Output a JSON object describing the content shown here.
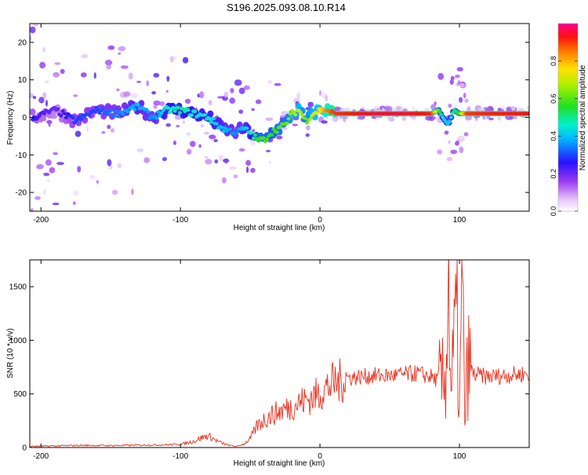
{
  "title": "S196.2025.093.08.10.R14",
  "chart_data": [
    {
      "type": "heatmap",
      "xlabel": "Height of straight line (km)",
      "ylabel": "Frequency (Hz)",
      "xlim": [
        -208,
        150
      ],
      "ylim": [
        -25,
        25
      ],
      "x_ticks": [
        -200,
        -100,
        0,
        100
      ],
      "y_ticks": [
        -20,
        -10,
        0,
        10,
        20
      ],
      "colorbar": {
        "label": "Normalized spectral amplitude",
        "ticks": [
          0.0,
          0.2,
          0.4,
          0.6,
          0.8
        ],
        "range": [
          0,
          1
        ]
      },
      "ridge": {
        "x": [
          -205,
          -190,
          -175,
          -160,
          -145,
          -130,
          -120,
          -110,
          -100,
          -90,
          -80,
          -70,
          -60,
          -55,
          -50,
          -45,
          -40,
          -35,
          -30,
          -25,
          -20,
          -15,
          -10,
          -5,
          0,
          5,
          10,
          20,
          40,
          60,
          80,
          85,
          88,
          92,
          96,
          100,
          105,
          120,
          150
        ],
        "freq": [
          0,
          2,
          -1,
          2,
          1,
          3,
          0,
          2,
          2,
          1,
          0,
          -3,
          -4,
          -3,
          -4,
          -6,
          -6,
          -4,
          -3,
          -2,
          1,
          2,
          -1,
          1,
          2,
          2,
          1,
          1,
          1,
          1,
          1,
          2,
          0,
          -2,
          2,
          1,
          1,
          1,
          1
        ],
        "amplitude": [
          0.25,
          0.2,
          0.3,
          0.3,
          0.35,
          0.4,
          0.35,
          0.45,
          0.5,
          0.45,
          0.45,
          0.4,
          0.35,
          0.4,
          0.45,
          0.55,
          0.6,
          0.55,
          0.6,
          0.6,
          0.65,
          0.7,
          0.6,
          0.7,
          0.75,
          0.85,
          0.9,
          0.92,
          0.95,
          0.95,
          0.92,
          0.6,
          0.45,
          0.4,
          0.5,
          0.6,
          0.9,
          0.92,
          0.93
        ]
      }
    },
    {
      "type": "line",
      "xlabel": "Height of straight line (km)",
      "ylabel": "SNR (10 * v/v)",
      "xlim": [
        -208,
        150
      ],
      "ylim": [
        0,
        1750
      ],
      "x_ticks": [
        -200,
        -100,
        0,
        100
      ],
      "y_ticks": [
        0,
        500,
        1000,
        1500
      ],
      "series": [
        {
          "color": "#e8301e",
          "x": [
            -208,
            -190,
            -170,
            -150,
            -130,
            -110,
            -100,
            -90,
            -85,
            -80,
            -75,
            -70,
            -65,
            -60,
            -55,
            -50,
            -45,
            -40,
            -35,
            -30,
            -25,
            -20,
            -15,
            -10,
            -5,
            0,
            5,
            10,
            15,
            20,
            30,
            40,
            50,
            60,
            70,
            80,
            85,
            90,
            92,
            94,
            96,
            98,
            100,
            102,
            104,
            106,
            110,
            120,
            130,
            140,
            150
          ],
          "y": [
            10,
            15,
            20,
            18,
            22,
            25,
            30,
            60,
            90,
            110,
            70,
            40,
            20,
            10,
            30,
            80,
            200,
            260,
            300,
            330,
            360,
            380,
            420,
            440,
            470,
            510,
            560,
            600,
            620,
            650,
            660,
            670,
            670,
            680,
            690,
            660,
            620,
            600,
            1700,
            500,
            900,
            1200,
            300,
            1500,
            200,
            800,
            680,
            660,
            670,
            680,
            690
          ]
        }
      ]
    }
  ]
}
